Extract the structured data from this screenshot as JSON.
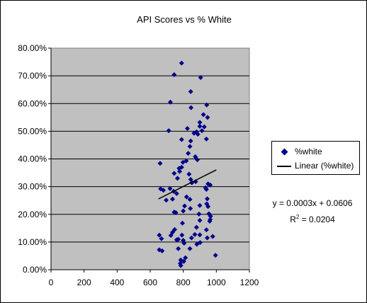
{
  "chart_data": {
    "type": "scatter",
    "title": "API Scores vs % White",
    "xlabel": "",
    "ylabel": "",
    "xlim": [
      0,
      1200
    ],
    "ylim": [
      0,
      0.8
    ],
    "x_ticks": [
      "0",
      "200",
      "400",
      "600",
      "800",
      "1000",
      "1200"
    ],
    "y_ticks": [
      "0.00%",
      "10.00%",
      "20.00%",
      "30.00%",
      "40.00%",
      "50.00%",
      "60.00%",
      "70.00%",
      "80.00%"
    ],
    "grid": "horizontal major gridlines",
    "plot_background": "#C0C0C0",
    "series": [
      {
        "name": "%white",
        "color": "#00008B",
        "marker": "diamond",
        "points": [
          [
            790,
            0.746
          ],
          [
            745,
            0.704
          ],
          [
            905,
            0.694
          ],
          [
            722,
            0.605
          ],
          [
            845,
            0.643
          ],
          [
            847,
            0.585
          ],
          [
            942,
            0.595
          ],
          [
            922,
            0.56
          ],
          [
            947,
            0.55
          ],
          [
            900,
            0.532
          ],
          [
            900,
            0.518
          ],
          [
            913,
            0.502
          ],
          [
            825,
            0.51
          ],
          [
            712,
            0.502
          ],
          [
            865,
            0.493
          ],
          [
            880,
            0.498
          ],
          [
            927,
            0.516
          ],
          [
            888,
            0.489
          ],
          [
            940,
            0.472
          ],
          [
            845,
            0.465
          ],
          [
            790,
            0.47
          ],
          [
            840,
            0.445
          ],
          [
            830,
            0.42
          ],
          [
            873,
            0.408
          ],
          [
            885,
            0.397
          ],
          [
            818,
            0.393
          ],
          [
            798,
            0.388
          ],
          [
            660,
            0.384
          ],
          [
            790,
            0.37
          ],
          [
            775,
            0.366
          ],
          [
            745,
            0.348
          ],
          [
            778,
            0.355
          ],
          [
            835,
            0.345
          ],
          [
            765,
            0.33
          ],
          [
            845,
            0.326
          ],
          [
            852,
            0.314
          ],
          [
            875,
            0.318
          ],
          [
            950,
            0.31
          ],
          [
            963,
            0.306
          ],
          [
            935,
            0.296
          ],
          [
            940,
            0.29
          ],
          [
            663,
            0.292
          ],
          [
            720,
            0.293
          ],
          [
            680,
            0.287
          ],
          [
            742,
            0.283
          ],
          [
            760,
            0.275
          ],
          [
            820,
            0.263
          ],
          [
            840,
            0.254
          ],
          [
            735,
            0.255
          ],
          [
            697,
            0.251
          ],
          [
            945,
            0.256
          ],
          [
            942,
            0.238
          ],
          [
            950,
            0.228
          ],
          [
            900,
            0.232
          ],
          [
            808,
            0.23
          ],
          [
            843,
            0.221
          ],
          [
            955,
            0.202
          ],
          [
            745,
            0.208
          ],
          [
            755,
            0.206
          ],
          [
            800,
            0.212
          ],
          [
            895,
            0.201
          ],
          [
            965,
            0.193
          ],
          [
            963,
            0.181
          ],
          [
            960,
            0.175
          ],
          [
            900,
            0.178
          ],
          [
            795,
            0.168
          ],
          [
            880,
            0.153
          ],
          [
            748,
            0.145
          ],
          [
            940,
            0.144
          ],
          [
            735,
            0.135
          ],
          [
            870,
            0.127
          ],
          [
            900,
            0.126
          ],
          [
            725,
            0.124
          ],
          [
            792,
            0.125
          ],
          [
            978,
            0.12
          ],
          [
            655,
            0.125
          ],
          [
            668,
            0.112
          ],
          [
            760,
            0.108
          ],
          [
            770,
            0.11
          ],
          [
            800,
            0.106
          ],
          [
            850,
            0.115
          ],
          [
            945,
            0.115
          ],
          [
            902,
            0.098
          ],
          [
            882,
            0.092
          ],
          [
            805,
            0.096
          ],
          [
            770,
            0.076
          ],
          [
            840,
            0.076
          ],
          [
            655,
            0.072
          ],
          [
            672,
            0.068
          ],
          [
            995,
            0.052
          ],
          [
            813,
            0.043
          ],
          [
            785,
            0.035
          ],
          [
            803,
            0.03
          ],
          [
            782,
            0.023
          ],
          [
            785,
            0.015
          ]
        ]
      }
    ],
    "trendline": {
      "name": "Linear (%white)",
      "type": "linear",
      "slope": 0.0003,
      "intercept": 0.0606,
      "x_range": [
        650,
        1000
      ],
      "color": "#000000",
      "equation": "y = 0.0003x + 0.0606",
      "r2_label": "R",
      "r2_exponent": "2",
      "r2_value": " = 0.0204"
    },
    "legend": {
      "placement": "right",
      "entries": [
        "%white",
        "Linear (%white)"
      ]
    }
  }
}
